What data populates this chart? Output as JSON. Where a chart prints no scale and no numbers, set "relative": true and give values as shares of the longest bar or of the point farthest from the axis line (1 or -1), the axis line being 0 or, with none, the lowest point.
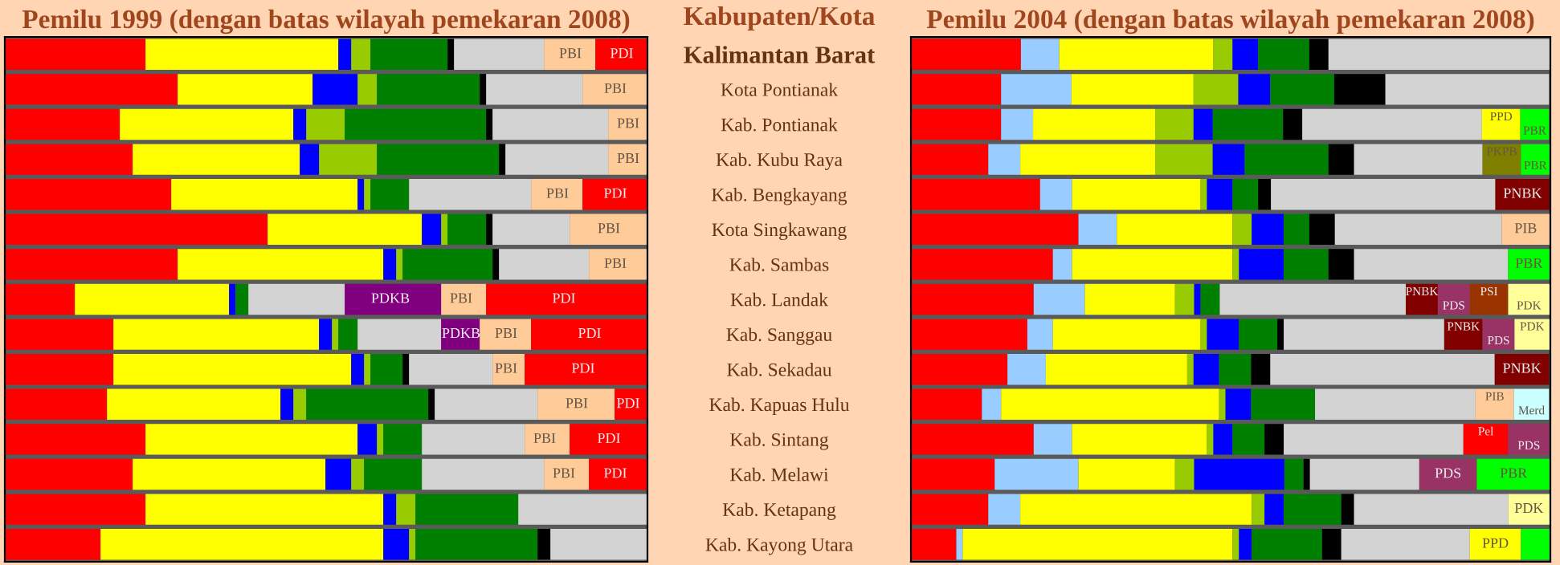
{
  "chart_data": [
    {
      "type": "bar",
      "orientation": "horizontal",
      "stacked": true,
      "relative": true,
      "title": "Pemilu 1999 (dengan batas wilayah pemekaran 2008)",
      "ylabel": "Kabupaten/Kota",
      "categories": [
        "Kalimantan Barat",
        "Kota Pontianak",
        "Kab. Pontianak",
        "Kab. Kubu Raya",
        "Kab. Bengkayang",
        "Kota Singkawang",
        "Kab. Sambas",
        "Kab. Landak",
        "Kab. Sanggau",
        "Kab. Sekadau",
        "Kab. Kapuas Hulu",
        "Kab. Sintang",
        "Kab. Melawi",
        "Kab. Ketapang",
        "Kab. Kayong Utara"
      ],
      "series": [
        {
          "color": "#ff0000",
          "values": [
            0.219,
            0.269,
            0.179,
            0.199,
            0.259,
            0.409,
            0.269,
            0.109,
            0.169,
            0.169,
            0.159,
            0.219,
            0.199,
            0.219,
            0.149
          ]
        },
        {
          "color": "#ffff00",
          "values": [
            0.3,
            0.21,
            0.27,
            0.26,
            0.29,
            0.24,
            0.32,
            0.24,
            0.32,
            0.37,
            0.27,
            0.33,
            0.3,
            0.37,
            0.44
          ]
        },
        {
          "color": "#0000ff",
          "values": [
            0.02,
            0.07,
            0.02,
            0.03,
            0.01,
            0.03,
            0.02,
            0.01,
            0.02,
            0.02,
            0.02,
            0.03,
            0.04,
            0.02,
            0.04
          ]
        },
        {
          "color": "#99cc00",
          "values": [
            0.03,
            0.03,
            0.06,
            0.09,
            0.01,
            0.01,
            0.01,
            null,
            0.01,
            0.01,
            0.02,
            0.01,
            0.02,
            0.03,
            0.01
          ]
        },
        {
          "color": "#008000",
          "values": [
            0.12,
            0.16,
            0.22,
            0.19,
            0.06,
            0.06,
            0.14,
            0.02,
            0.03,
            0.05,
            0.19,
            0.06,
            0.09,
            0.16,
            0.19
          ]
        },
        {
          "color": "#000000",
          "values": [
            0.01,
            0.01,
            0.01,
            0.01,
            null,
            0.01,
            0.01,
            null,
            null,
            0.01,
            0.01,
            null,
            null,
            null,
            0.02
          ]
        },
        {
          "color": "#d3d3d3",
          "values": [
            0.14,
            0.15,
            0.18,
            0.16,
            0.19,
            0.12,
            0.14,
            0.15,
            0.13,
            0.13,
            0.16,
            0.16,
            0.19,
            0.2,
            0.151
          ]
        },
        {
          "color": "#800080",
          "values": [
            null,
            null,
            null,
            null,
            null,
            null,
            null,
            0.15,
            0.06,
            null,
            null,
            null,
            null,
            null,
            null
          ]
        },
        {
          "color": "#ffcc99",
          "values": [
            0.08,
            0.101,
            0.061,
            0.061,
            0.08,
            0.121,
            0.091,
            0.07,
            0.08,
            0.05,
            0.12,
            0.07,
            0.07,
            null,
            null
          ]
        },
        {
          "color": "#ff0000",
          "values": [
            0.081,
            null,
            null,
            null,
            0.101,
            null,
            null,
            0.251,
            0.181,
            0.191,
            0.051,
            0.121,
            0.091,
            null,
            null
          ]
        }
      ],
      "annotations": [
        {
          "text": "PBI",
          "x": 0.88,
          "y": "Kalimantan Barat"
        },
        {
          "text": "PDI",
          "x": 0.96,
          "y": "Kalimantan Barat"
        },
        {
          "text": "PBI",
          "x": 0.95,
          "y": "Kota Pontianak"
        },
        {
          "text": "PBI",
          "x": 0.97,
          "y": "Kab. Pontianak"
        },
        {
          "text": "PBI",
          "x": 0.97,
          "y": "Kab. Kubu Raya"
        },
        {
          "text": "PBI",
          "x": 0.86,
          "y": "Kab. Bengkayang"
        },
        {
          "text": "PDI",
          "x": 0.95,
          "y": "Kab. Bengkayang"
        },
        {
          "text": "PBI",
          "x": 0.94,
          "y": "Kota Singkawang"
        },
        {
          "text": "PBI",
          "x": 0.95,
          "y": "Kab. Sambas"
        },
        {
          "text": "PDKB",
          "x": 0.6,
          "y": "Kab. Landak"
        },
        {
          "text": "PBI",
          "x": 0.71,
          "y": "Kab. Landak"
        },
        {
          "text": "PDI",
          "x": 0.87,
          "y": "Kab. Landak"
        },
        {
          "text": "PDKB",
          "x": 0.71,
          "y": "Kab. Sanggau"
        },
        {
          "text": "PBI",
          "x": 0.78,
          "y": "Kab. Sanggau"
        },
        {
          "text": "PDI",
          "x": 0.91,
          "y": "Kab. Sanggau"
        },
        {
          "text": "PBI",
          "x": 0.78,
          "y": "Kab. Sekadau"
        },
        {
          "text": "PDI",
          "x": 0.9,
          "y": "Kab. Sekadau"
        },
        {
          "text": "PBI",
          "x": 0.89,
          "y": "Kab. Kapuas Hulu"
        },
        {
          "text": "PDI",
          "x": 0.97,
          "y": "Kab. Kapuas Hulu"
        },
        {
          "text": "PBI",
          "x": 0.84,
          "y": "Kab. Sintang"
        },
        {
          "text": "PDI",
          "x": 0.94,
          "y": "Kab. Sintang"
        },
        {
          "text": "PBI",
          "x": 0.87,
          "y": "Kab. Melawi"
        },
        {
          "text": "PDI",
          "x": 0.95,
          "y": "Kab. Melawi"
        }
      ]
    },
    {
      "type": "bar",
      "orientation": "horizontal",
      "stacked": true,
      "relative": true,
      "tick_labels": false,
      "title": "Pemilu 2004 (dengan batas wilayah pemekaran 2008)",
      "categories": [
        "Kalimantan Barat",
        "Kota Pontianak",
        "Kab. Pontianak",
        "Kab. Kubu Raya",
        "Kab. Bengkayang",
        "Kota Singkawang",
        "Kab. Sambas",
        "Kab. Landak",
        "Kab. Sanggau",
        "Kab. Sekadau",
        "Kab. Kapuas Hulu",
        "Kab. Sintang",
        "Kab. Melawi",
        "Kab. Ketapang",
        "Kab. Kayong Utara"
      ],
      "series": [
        {
          "color": "#ff0000",
          "values": [
            0.172,
            0.141,
            0.141,
            0.121,
            0.202,
            0.262,
            0.222,
            0.192,
            0.182,
            0.151,
            0.111,
            0.192,
            0.131,
            0.121,
            0.071
          ]
        },
        {
          "color": "#99ccff",
          "values": [
            0.06,
            0.11,
            0.05,
            0.05,
            0.05,
            0.06,
            0.03,
            0.08,
            0.04,
            0.06,
            0.03,
            0.06,
            0.131,
            0.05,
            0.01
          ]
        },
        {
          "color": "#ffff00",
          "values": [
            0.241,
            0.191,
            0.191,
            0.211,
            0.201,
            0.181,
            0.251,
            0.141,
            0.231,
            0.221,
            0.341,
            0.211,
            0.151,
            0.362,
            0.422
          ]
        },
        {
          "color": "#99cc00",
          "values": [
            0.03,
            0.07,
            0.06,
            0.09,
            0.01,
            0.03,
            0.01,
            0.03,
            0.01,
            0.01,
            0.01,
            0.01,
            0.03,
            0.02,
            0.01
          ]
        },
        {
          "color": "#0000ff",
          "values": [
            0.04,
            0.05,
            0.03,
            0.05,
            0.04,
            0.05,
            0.07,
            0.01,
            0.05,
            0.04,
            0.04,
            0.03,
            0.141,
            0.03,
            0.02
          ]
        },
        {
          "color": "#008000",
          "values": [
            0.08,
            0.1,
            0.11,
            0.131,
            0.04,
            0.04,
            0.07,
            0.03,
            0.06,
            0.05,
            0.1,
            0.05,
            0.03,
            0.09,
            0.11
          ]
        },
        {
          "color": "#000000",
          "values": [
            0.03,
            0.08,
            0.03,
            0.04,
            0.02,
            0.04,
            0.04,
            null,
            0.01,
            0.03,
            null,
            0.03,
            0.01,
            0.02,
            0.03
          ]
        },
        {
          "color": "#d3d3d3",
          "values": [
            0.346,
            0.256,
            0.281,
            0.201,
            0.351,
            0.261,
            0.241,
            0.291,
            0.251,
            0.351,
            0.251,
            0.281,
            0.171,
            0.241,
            0.201
          ]
        },
        {
          "colors": [
            null,
            null,
            "#ffff00",
            "#808000",
            "#800000",
            "#ffcc99",
            "#00ff00",
            "#800000",
            "#800000",
            "#800000",
            "#ffcc99",
            "#ff0000",
            "#993366",
            "#ffff99",
            "#ffff00"
          ],
          "values": [
            null,
            null,
            0.06,
            0.06,
            0.085,
            0.075,
            0.065,
            0.05,
            0.06,
            0.085,
            0.06,
            0.07,
            0.09,
            0.065,
            0.08
          ]
        },
        {
          "colors": [
            null,
            null,
            "#00ff00",
            "#00ff00",
            null,
            null,
            null,
            "#993366",
            "#993366",
            null,
            "#ccffff",
            "#993366",
            "#00ff00",
            null,
            "#00ff00"
          ],
          "values": [
            null,
            null,
            0.045,
            0.045,
            null,
            null,
            null,
            0.05,
            0.05,
            null,
            0.055,
            0.065,
            0.115,
            null,
            0.045
          ]
        },
        {
          "colors": [
            null,
            null,
            null,
            null,
            null,
            null,
            null,
            "#993300",
            "#ffff99",
            null,
            null,
            null,
            null,
            null,
            null
          ],
          "values": [
            null,
            null,
            null,
            null,
            null,
            null,
            null,
            0.06,
            0.055,
            null,
            null,
            null,
            null,
            null,
            null
          ]
        },
        {
          "colors": [
            null,
            null,
            null,
            null,
            null,
            null,
            null,
            "#ffff99",
            null,
            null,
            null,
            null,
            null,
            null,
            null
          ],
          "values": [
            null,
            null,
            null,
            null,
            null,
            null,
            null,
            0.065,
            null,
            null,
            null,
            null,
            null,
            null,
            null
          ]
        }
      ],
      "annotations": [
        {
          "text": "PPD",
          "x": 0.953,
          "y": "Kab. Pontianak"
        },
        {
          "text": "PBR",
          "x": 0.998,
          "y": "Kab. Pontianak"
        },
        {
          "text": "PKPB",
          "x": 0.954,
          "y": "Kab. Kubu Raya"
        },
        {
          "text": "PBR",
          "x": 0.999,
          "y": "Kab. Kubu Raya"
        },
        {
          "text": "PNBK",
          "x": 0.999,
          "y": "Kab. Bengkayang"
        },
        {
          "text": "PIB",
          "x": 0.999,
          "y": "Kota Singkawang"
        },
        {
          "text": "PBR",
          "x": 0.999,
          "y": "Kab. Sambas"
        },
        {
          "text": "PNBK",
          "x": 0.824,
          "y": "Kab. Landak"
        },
        {
          "text": "PDS",
          "x": 0.874,
          "y": "Kab. Landak"
        },
        {
          "text": "PSI",
          "x": 0.934,
          "y": "Kab. Landak"
        },
        {
          "text": "PDK",
          "x": 0.999,
          "y": "Kab. Landak"
        },
        {
          "text": "PNBK",
          "x": 0.894,
          "y": "Kab. Sanggau"
        },
        {
          "text": "PDS",
          "x": 0.944,
          "y": "Kab. Sanggau"
        },
        {
          "text": "PDK",
          "x": 0.999,
          "y": "Kab. Sanggau"
        },
        {
          "text": "PNBK",
          "x": 0.998,
          "y": "Kab. Sekadau"
        },
        {
          "text": "PIB",
          "x": 0.943,
          "y": "Kab. Kapuas Hulu"
        },
        {
          "text": "Merd",
          "x": 0.998,
          "y": "Kab. Kapuas Hulu"
        },
        {
          "text": "Pel",
          "x": 0.934,
          "y": "Kab. Sintang"
        },
        {
          "text": "PDS",
          "x": 0.999,
          "y": "Kab. Sintang"
        },
        {
          "text": "PDS",
          "x": 0.885,
          "y": "Kab. Melawi"
        },
        {
          "text": "PBR",
          "x": 1.0,
          "y": "Kab. Melawi"
        },
        {
          "text": "PDK",
          "x": 0.999,
          "y": "Kab. Ketapang"
        },
        {
          "text": "PPD",
          "x": 0.954,
          "y": "Kab. Kayong Utara"
        }
      ]
    }
  ]
}
